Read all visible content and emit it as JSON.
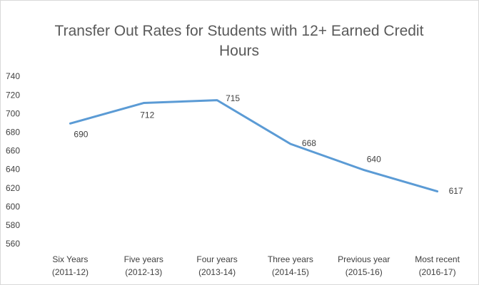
{
  "chart_data": {
    "type": "line",
    "title": "Transfer Out Rates for Students with 12+ Earned Credit Hours",
    "categories": [
      [
        "Six Years",
        "(2011-12)"
      ],
      [
        "Five years",
        "(2012-13)"
      ],
      [
        "Four years",
        "(2013-14)"
      ],
      [
        "Three years",
        "(2014-15)"
      ],
      [
        "Previous year",
        "(2015-16)"
      ],
      [
        "Most recent",
        "(2016-17)"
      ]
    ],
    "series": [
      {
        "name": "Transfer Out Rates",
        "color": "#5b9bd5",
        "values": [
          690,
          712,
          715,
          668,
          640,
          617
        ]
      }
    ],
    "ylim": [
      560,
      740
    ],
    "yticks": [
      560,
      580,
      600,
      620,
      640,
      660,
      680,
      700,
      720,
      740
    ],
    "grid": false
  }
}
